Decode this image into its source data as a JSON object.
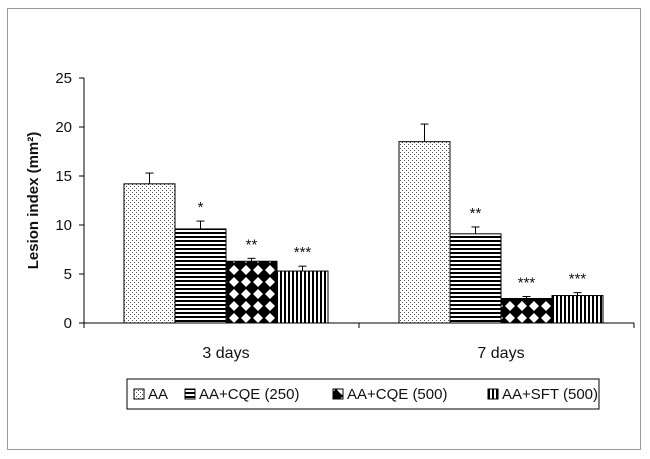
{
  "chart_data": {
    "type": "bar",
    "ylabel": "Lesion index (mm²)",
    "xlabel": "",
    "ylim": [
      0,
      25
    ],
    "yticks": [
      0,
      5,
      10,
      15,
      20,
      25
    ],
    "categories": [
      "3 days",
      "7 days"
    ],
    "legend_position": "bottom",
    "series": [
      {
        "name": "AA",
        "pattern": "dots",
        "values": [
          14.2,
          18.5
        ],
        "errors": [
          1.1,
          1.8
        ],
        "annotations": [
          "",
          ""
        ]
      },
      {
        "name": "AA+CQE (250)",
        "pattern": "hstripes",
        "values": [
          9.6,
          9.1
        ],
        "errors": [
          0.8,
          0.7
        ],
        "annotations": [
          "*",
          "**"
        ]
      },
      {
        "name": "AA+CQE (500)",
        "pattern": "checker",
        "values": [
          6.3,
          2.5
        ],
        "errors": [
          0.3,
          0.2
        ],
        "annotations": [
          "**",
          "***"
        ]
      },
      {
        "name": "AA+SFT (500)",
        "pattern": "vstripes",
        "values": [
          5.3,
          2.8
        ],
        "errors": [
          0.5,
          0.3
        ],
        "annotations": [
          "***",
          "***"
        ]
      }
    ]
  }
}
